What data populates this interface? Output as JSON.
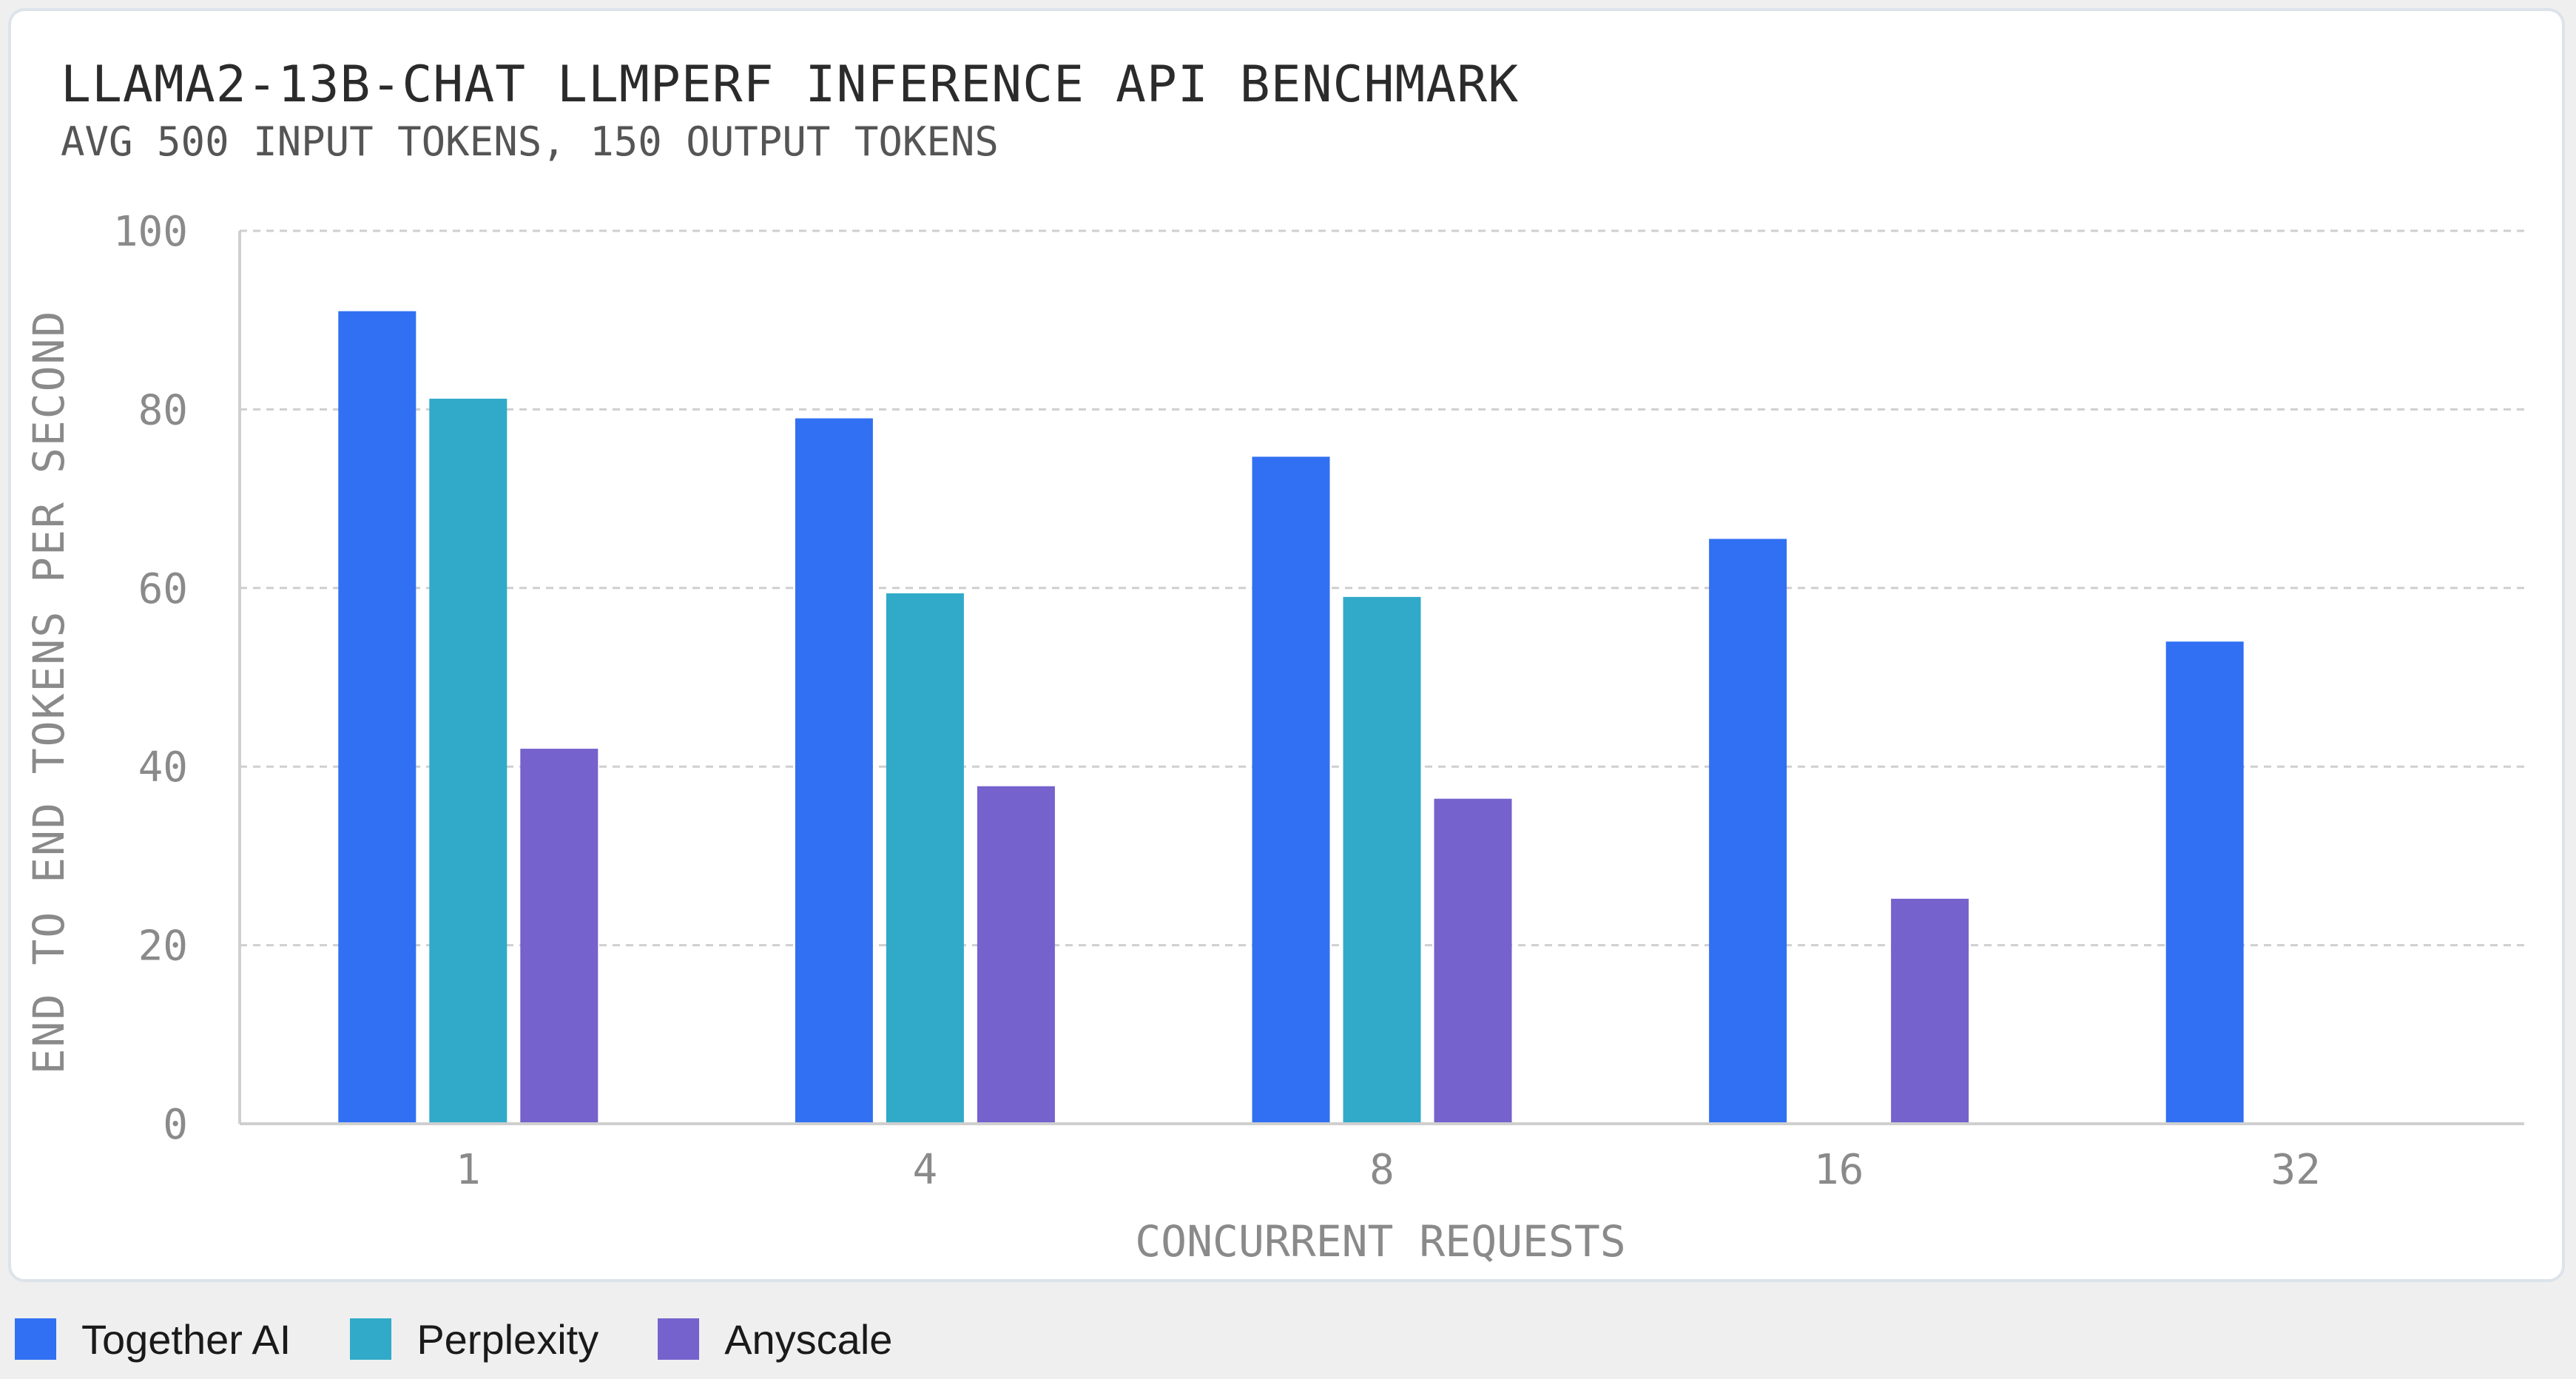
{
  "chart_data": {
    "type": "bar",
    "title": "LLAMA2-13B-CHAT LLMPERF INFERENCE API BENCHMARK",
    "subtitle": "AVG 500 INPUT TOKENS, 150 OUTPUT TOKENS",
    "xlabel": "CONCURRENT REQUESTS",
    "ylabel": "END TO END TOKENS PER SECOND",
    "ylim": [
      0,
      100
    ],
    "yticks": [
      "0",
      "20",
      "40",
      "60",
      "80",
      "100"
    ],
    "categories": [
      "1",
      "4",
      "8",
      "16",
      "32"
    ],
    "grid": true,
    "legend_position": "bottom-left",
    "series": [
      {
        "name": "Together AI",
        "color": "#3170f2",
        "values": [
          91,
          79,
          74.7,
          65.5,
          54
        ]
      },
      {
        "name": "Perplexity",
        "color": "#31aac9",
        "values": [
          81.2,
          59.4,
          59,
          null,
          null
        ]
      },
      {
        "name": "Anyscale",
        "color": "#7562cc",
        "values": [
          42,
          37.8,
          36.4,
          25.2,
          null
        ]
      }
    ]
  }
}
